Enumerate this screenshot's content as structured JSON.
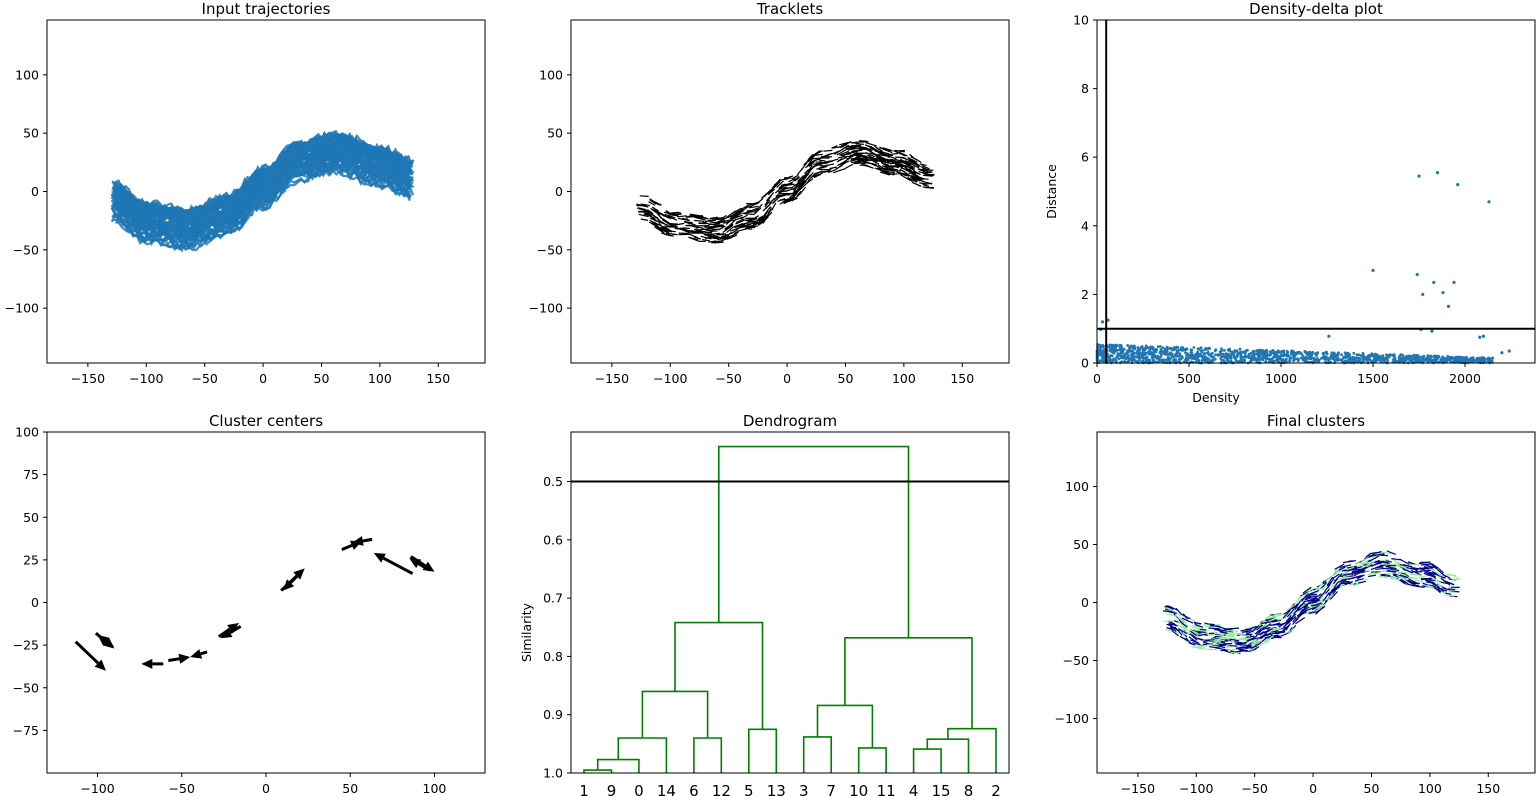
{
  "figure": {
    "colors": {
      "trajectory": "#1f77b4",
      "tracklet": "#000000",
      "density_point": "#1f77b4",
      "threshold_line": "#000000",
      "dendrogram": "#008000",
      "cluster_a": "#90ee90",
      "cluster_b": "#00008b"
    }
  },
  "chart_data": [
    {
      "id": "input",
      "type": "line",
      "title": "Input trajectories",
      "xlabel": "",
      "ylabel": "",
      "xlim": [
        -185,
        190
      ],
      "ylim": [
        -147,
        147
      ],
      "xticks": [
        -150,
        -100,
        -50,
        0,
        50,
        100,
        150
      ],
      "yticks": [
        -100,
        -50,
        0,
        50,
        100
      ],
      "series": [
        {
          "name": "trajectory band (centerline with half-width)",
          "x": [
            -130,
            -100,
            -65,
            -30,
            0,
            30,
            65,
            100,
            130
          ],
          "y": [
            -8,
            -26,
            -32,
            -20,
            3,
            26,
            33,
            21,
            10
          ],
          "half_width": 16
        }
      ]
    },
    {
      "id": "tracklets",
      "type": "quiver",
      "title": "Tracklets",
      "xlabel": "",
      "ylabel": "",
      "xlim": [
        -185,
        190
      ],
      "ylim": [
        -147,
        147
      ],
      "xticks": [
        -150,
        -100,
        -50,
        0,
        50,
        100,
        150
      ],
      "yticks": [
        -100,
        -50,
        0,
        50,
        100
      ],
      "series": [
        {
          "name": "tracklet band (centerline with half-width)",
          "x": [
            -125,
            -95,
            -60,
            -30,
            0,
            30,
            60,
            95,
            122
          ],
          "y": [
            -14,
            -29,
            -33,
            -21,
            2,
            25,
            33,
            24,
            13
          ],
          "half_width": 11
        }
      ]
    },
    {
      "id": "density",
      "type": "scatter",
      "title": "Density-delta plot",
      "xlabel": "Density",
      "ylabel": "Distance",
      "xlim": [
        0,
        2380
      ],
      "ylim": [
        0,
        10
      ],
      "xticks": [
        0,
        500,
        1000,
        1500,
        2000
      ],
      "yticks": [
        0,
        2,
        4,
        6,
        8,
        10
      ],
      "thresholds": {
        "x": 50,
        "y": 1.0
      },
      "points": [
        [
          1750,
          5.45
        ],
        [
          1850,
          5.55
        ],
        [
          1960,
          5.2
        ],
        [
          2130,
          4.7
        ],
        [
          1500,
          2.7
        ],
        [
          1740,
          2.58
        ],
        [
          1830,
          2.35
        ],
        [
          1940,
          2.35
        ],
        [
          1770,
          2.0
        ],
        [
          1880,
          2.05
        ],
        [
          1910,
          1.65
        ],
        [
          30,
          1.2
        ],
        [
          60,
          1.25
        ],
        [
          20,
          0.98
        ],
        [
          1260,
          0.78
        ],
        [
          1760,
          0.98
        ],
        [
          1820,
          0.93
        ],
        [
          2080,
          0.75
        ],
        [
          2100,
          0.78
        ],
        [
          2240,
          0.35
        ],
        [
          2200,
          0.3
        ]
      ],
      "band": {
        "x_max": 2150,
        "y_top_at_0": 0.55,
        "y_top_at_end": 0.15
      }
    },
    {
      "id": "centers",
      "type": "quiver",
      "title": "Cluster centers",
      "xlabel": "",
      "ylabel": "",
      "xlim": [
        -130,
        130
      ],
      "ylim": [
        -100,
        100
      ],
      "xticks": [
        -100,
        -50,
        0,
        50,
        100
      ],
      "yticks": [
        -75,
        -50,
        -25,
        0,
        25,
        50,
        75,
        100
      ],
      "arrows": [
        {
          "x": -113,
          "y": -23,
          "dx": 18,
          "dy": -17
        },
        {
          "x": -101,
          "y": -18,
          "dx": 11,
          "dy": -9
        },
        {
          "x": -91,
          "y": -26,
          "dx": -9,
          "dy": 7
        },
        {
          "x": -58,
          "y": -34,
          "dx": 13,
          "dy": 2
        },
        {
          "x": -61,
          "y": -36,
          "dx": -13,
          "dy": 0
        },
        {
          "x": -35,
          "y": -29,
          "dx": -10,
          "dy": -3
        },
        {
          "x": -28,
          "y": -20,
          "dx": 12,
          "dy": 8
        },
        {
          "x": -15,
          "y": -14,
          "dx": -12,
          "dy": -7
        },
        {
          "x": 9,
          "y": 7,
          "dx": 14,
          "dy": 13
        },
        {
          "x": 20,
          "y": 17,
          "dx": -10,
          "dy": -10
        },
        {
          "x": 45,
          "y": 31,
          "dx": 12,
          "dy": 5
        },
        {
          "x": 63,
          "y": 37,
          "dx": -12,
          "dy": -2
        },
        {
          "x": 87,
          "y": 17,
          "dx": -23,
          "dy": 12
        },
        {
          "x": 86,
          "y": 27,
          "dx": 14,
          "dy": -9
        },
        {
          "x": 97,
          "y": 19,
          "dx": -12,
          "dy": 7
        }
      ]
    },
    {
      "id": "dendrogram",
      "type": "dendrogram",
      "title": "Dendrogram",
      "xlabel": "",
      "ylabel": "Similarity",
      "ylim": [
        0.415,
        1.0
      ],
      "yticks": [
        0.5,
        0.6,
        0.7,
        0.8,
        0.9,
        1.0
      ],
      "ytick_labels": [
        "0.5",
        "0.6",
        "0.7",
        "0.8",
        "0.9",
        "1.0"
      ],
      "threshold": 0.5,
      "leaves": [
        "1",
        "9",
        "0",
        "14",
        "6",
        "12",
        "5",
        "13",
        "3",
        "7",
        "10",
        "11",
        "4",
        "15",
        "8",
        "2"
      ],
      "links": [
        {
          "x": [
            0.0,
            0.0,
            1.0,
            1.0
          ],
          "y": [
            1.0,
            0.995,
            0.995,
            1.0
          ]
        },
        {
          "x": [
            0.5,
            0.5,
            2.0,
            2.0
          ],
          "y": [
            0.995,
            0.977,
            0.977,
            1.0
          ]
        },
        {
          "x": [
            1.25,
            1.25,
            3.0,
            3.0
          ],
          "y": [
            0.977,
            0.94,
            0.94,
            1.0
          ]
        },
        {
          "x": [
            4.0,
            4.0,
            5.0,
            5.0
          ],
          "y": [
            1.0,
            0.94,
            0.94,
            1.0
          ]
        },
        {
          "x": [
            2.125,
            2.125,
            4.5,
            4.5
          ],
          "y": [
            0.94,
            0.86,
            0.86,
            0.94
          ]
        },
        {
          "x": [
            6.0,
            6.0,
            7.0,
            7.0
          ],
          "y": [
            1.0,
            0.925,
            0.925,
            1.0
          ]
        },
        {
          "x": [
            3.3125,
            3.3125,
            6.5,
            6.5
          ],
          "y": [
            0.86,
            0.742,
            0.742,
            0.925
          ]
        },
        {
          "x": [
            8.0,
            8.0,
            9.0,
            9.0
          ],
          "y": [
            1.0,
            0.938,
            0.938,
            1.0
          ]
        },
        {
          "x": [
            10.0,
            10.0,
            11.0,
            11.0
          ],
          "y": [
            1.0,
            0.957,
            0.957,
            1.0
          ]
        },
        {
          "x": [
            8.5,
            8.5,
            10.5,
            10.5
          ],
          "y": [
            0.938,
            0.884,
            0.884,
            0.957
          ]
        },
        {
          "x": [
            12.0,
            12.0,
            13.0,
            13.0
          ],
          "y": [
            1.0,
            0.959,
            0.959,
            1.0
          ]
        },
        {
          "x": [
            12.5,
            12.5,
            14.0,
            14.0
          ],
          "y": [
            0.959,
            0.942,
            0.942,
            1.0
          ]
        },
        {
          "x": [
            13.25,
            13.25,
            15.0,
            15.0
          ],
          "y": [
            0.942,
            0.924,
            0.924,
            1.0
          ]
        },
        {
          "x": [
            9.5,
            9.5,
            14.125,
            14.125
          ],
          "y": [
            0.884,
            0.768,
            0.768,
            0.924
          ]
        },
        {
          "x": [
            4.906,
            4.906,
            11.813,
            11.813
          ],
          "y": [
            0.742,
            0.44,
            0.44,
            0.768
          ]
        }
      ]
    },
    {
      "id": "final",
      "type": "quiver",
      "title": "Final clusters",
      "xlabel": "",
      "ylabel": "",
      "xlim": [
        -185,
        190
      ],
      "ylim": [
        -147,
        147
      ],
      "xticks": [
        -150,
        -100,
        -50,
        0,
        50,
        100,
        150
      ],
      "yticks": [
        -100,
        -50,
        0,
        50,
        100
      ],
      "series": [
        {
          "name": "clustered tracklets (centerline with half-width)",
          "x": [
            -125,
            -95,
            -60,
            -30,
            0,
            30,
            60,
            95,
            122
          ],
          "y": [
            -14,
            -29,
            -33,
            -21,
            2,
            25,
            33,
            24,
            13
          ],
          "half_width": 11
        }
      ]
    }
  ]
}
